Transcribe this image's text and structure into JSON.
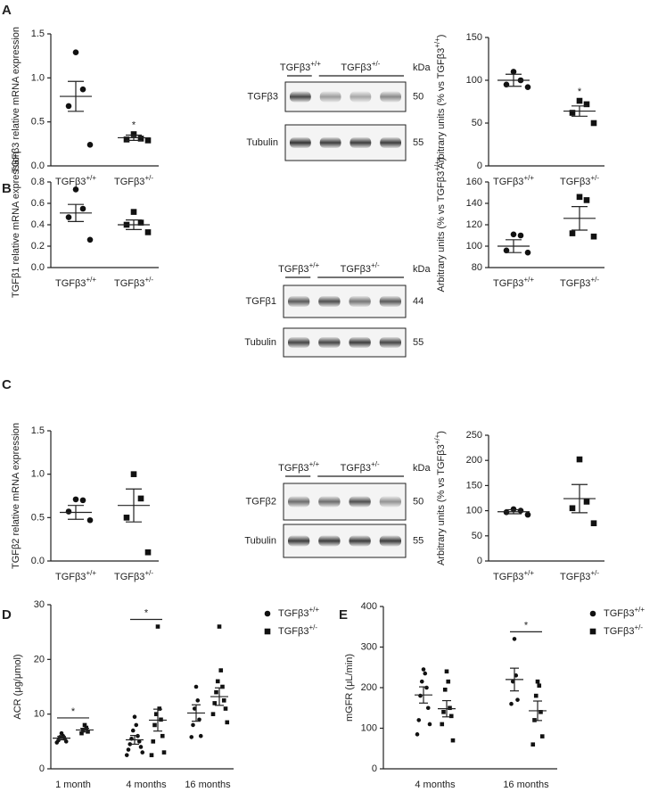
{
  "panels": [
    "A",
    "B",
    "C",
    "D",
    "E"
  ],
  "chart_data": [
    {
      "type": "dot",
      "ylabel": "TGFβ3 relative mRNA expression",
      "categories": [
        "TGFβ3+/+",
        "TGFβ3+/-"
      ],
      "markers": [
        "circle",
        "square"
      ],
      "points": [
        [
          1.29,
          0.87,
          0.68,
          0.24
        ],
        [
          0.36,
          0.31,
          0.3,
          0.29
        ]
      ],
      "mean": [
        0.79,
        0.32
      ],
      "sem": [
        0.17,
        0.03
      ],
      "ylim": [
        0,
        1.5
      ],
      "yticks": [
        {
          "value": 0,
          "label": "0.0"
        },
        0.5,
        {
          "value": 1,
          "label": "1.0"
        },
        1.5
      ],
      "annotations": [
        {
          "text": "*",
          "category": 1
        }
      ]
    },
    {
      "type": "dot",
      "ylabel": "Arbitrary units (% vs TGFβ3+/+)",
      "categories": [
        "TGFβ3+/+",
        "TGFβ3+/-"
      ],
      "markers": [
        "circle",
        "square"
      ],
      "points": [
        [
          110,
          100,
          95,
          92
        ],
        [
          76,
          72,
          62,
          50
        ]
      ],
      "mean": [
        100,
        64
      ],
      "sem": [
        7,
        6
      ],
      "ylim": [
        0,
        150
      ],
      "yticks": [
        0,
        50,
        100,
        150
      ],
      "annotations": [
        {
          "text": "*",
          "category": 1
        }
      ]
    },
    {
      "type": "dot",
      "ylabel": "TGFβ1 relative mRNA expression",
      "categories": [
        "TGFβ3+/+",
        "TGFβ3+/-"
      ],
      "markers": [
        "circle",
        "square"
      ],
      "points": [
        [
          0.73,
          0.55,
          0.47,
          0.26
        ],
        [
          0.52,
          0.42,
          0.4,
          0.33
        ]
      ],
      "mean": [
        0.51,
        0.4
      ],
      "sem": [
        0.08,
        0.045
      ],
      "ylim": [
        0,
        0.8
      ],
      "yticks": [
        {
          "value": 0,
          "label": "0.0"
        },
        0.2,
        0.4,
        0.6,
        0.8
      ]
    },
    {
      "type": "dot",
      "ylabel": "Arbitrary units (% vs TGFβ3+/+)",
      "categories": [
        "TGFβ3+/+",
        "TGFβ3+/-"
      ],
      "markers": [
        "circle",
        "square"
      ],
      "points": [
        [
          111,
          110,
          96,
          94
        ],
        [
          146,
          143,
          112,
          109
        ]
      ],
      "mean": [
        100,
        126
      ],
      "sem": [
        6,
        11
      ],
      "ylim": [
        80,
        160
      ],
      "yticks": [
        80,
        100,
        120,
        140,
        160
      ]
    },
    {
      "type": "dot",
      "ylabel": "TGFβ2 relative mRNA expression",
      "categories": [
        "TGFβ3+/+",
        "TGFβ3+/-"
      ],
      "markers": [
        "circle",
        "square"
      ],
      "points": [
        [
          0.71,
          0.7,
          0.57,
          0.47
        ],
        [
          1.0,
          0.72,
          0.5,
          0.1
        ]
      ],
      "mean": [
        0.56,
        0.64
      ],
      "sem": [
        0.08,
        0.19
      ],
      "ylim": [
        0,
        1.5
      ],
      "yticks": [
        {
          "value": 0,
          "label": "0.0"
        },
        0.5,
        {
          "value": 1,
          "label": "1.0"
        },
        1.5
      ]
    },
    {
      "type": "dot",
      "ylabel": "Arbitrary units (% vs TGFβ3+/+)",
      "categories": [
        "TGFβ3+/+",
        "TGFβ3+/-"
      ],
      "markers": [
        "circle",
        "square"
      ],
      "points": [
        [
          103,
          100,
          97,
          92
        ],
        [
          202,
          118,
          105,
          75
        ]
      ],
      "mean": [
        98,
        124
      ],
      "sem": [
        4,
        28
      ],
      "ylim": [
        0,
        250
      ],
      "yticks": [
        0,
        50,
        100,
        150,
        200,
        250
      ]
    },
    {
      "type": "grouped-dot",
      "ylabel": "ACR (μg/μmol)",
      "categories": [
        "1 month",
        "4 months",
        "16 months"
      ],
      "series": [
        {
          "name": "TGFβ3+/+",
          "marker": "circle",
          "points": [
            [
              6.5,
              6,
              5.8,
              5.5,
              5.2,
              5,
              4.8
            ],
            [
              9.5,
              8,
              7,
              6,
              5.5,
              5,
              4.5,
              4,
              3.5,
              3,
              2.5
            ],
            [
              15,
              12.5,
              11,
              9,
              8,
              6,
              5.8
            ]
          ],
          "mean": [
            5.6,
            5.3,
            10.2
          ],
          "sem": [
            0.3,
            0.8,
            1.5
          ]
        },
        {
          "name": "TGFβ3+/-",
          "marker": "square",
          "points": [
            [
              8,
              7.5,
              7,
              6.8,
              6.5
            ],
            [
              26,
              11,
              10,
              9,
              8,
              6,
              5,
              3,
              2.5
            ],
            [
              26,
              18,
              16,
              15,
              14,
              12.5,
              12,
              11,
              10,
              8.5
            ]
          ],
          "mean": [
            7.1,
            8.9,
            13.2
          ],
          "sem": [
            0.3,
            2,
            1.6
          ]
        }
      ],
      "ylim": [
        0,
        30
      ],
      "yticks": [
        0,
        10,
        20,
        30
      ],
      "annotations": [
        {
          "text": "*",
          "category": 0
        },
        {
          "text": "*",
          "category": 1
        }
      ]
    },
    {
      "type": "grouped-dot",
      "ylabel": "mGFR (μL/min)",
      "categories": [
        "4 months",
        "16 months"
      ],
      "series": [
        {
          "name": "TGFβ3+/+",
          "marker": "circle",
          "points": [
            [
              245,
              235,
              215,
              200,
              180,
              150,
              120,
              110,
              85
            ],
            [
              320,
              230,
              215,
              170,
              160
            ]
          ],
          "mean": [
            182,
            220
          ],
          "sem": [
            20,
            28
          ]
        },
        {
          "name": "TGFβ3+/-",
          "marker": "square",
          "points": [
            [
              240,
              215,
              195,
              150,
              140,
              130,
              110,
              70
            ],
            [
              215,
              205,
              180,
              140,
              120,
              80,
              60
            ]
          ],
          "mean": [
            148,
            143
          ],
          "sem": [
            20,
            24
          ]
        }
      ],
      "ylim": [
        0,
        400
      ],
      "yticks": [
        0,
        100,
        200,
        300,
        400
      ],
      "annotations": [
        {
          "text": "*",
          "category": 1
        }
      ]
    }
  ],
  "blots": [
    {
      "header_left": "TGFβ3+/+",
      "header_right": "TGFβ3+/-",
      "unit": "kDa",
      "rows": [
        {
          "label": "TGFβ3",
          "kda": 50
        },
        {
          "label": "Tubulin",
          "kda": 55
        }
      ]
    },
    {
      "header_left": "TGFβ3+/+",
      "header_right": "TGFβ3+/-",
      "unit": "kDa",
      "rows": [
        {
          "label": "TGFβ1",
          "kda": 44
        },
        {
          "label": "Tubulin",
          "kda": 55
        }
      ]
    },
    {
      "header_left": "TGFβ3+/+",
      "header_right": "TGFβ3+/-",
      "unit": "kDa",
      "rows": [
        {
          "label": "TGFβ2",
          "kda": 50
        },
        {
          "label": "Tubulin",
          "kda": 55
        }
      ]
    }
  ]
}
